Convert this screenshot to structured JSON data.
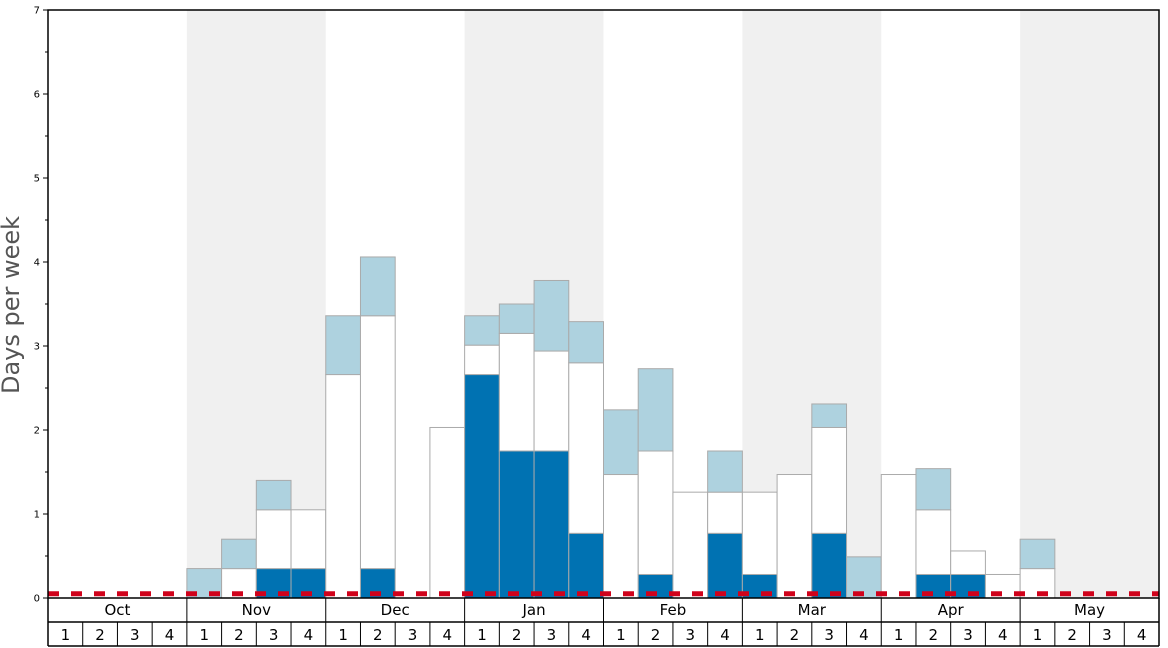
{
  "chart_data": {
    "type": "bar",
    "ylabel": "Days per week",
    "ylim": [
      0,
      7
    ],
    "yticks": [
      "0",
      "1",
      "2",
      "3",
      "4",
      "5",
      "6",
      "7"
    ],
    "months": [
      "Oct",
      "Nov",
      "Dec",
      "Jan",
      "Feb",
      "Mar",
      "Apr",
      "May"
    ],
    "week_labels": [
      "1",
      "2",
      "3",
      "4"
    ],
    "shaded_months": [
      "Nov",
      "Jan",
      "Mar",
      "May"
    ],
    "threshold": 0.05,
    "colors": {
      "dark": "#0072b2",
      "white": "#ffffff",
      "light": "#aed2df",
      "threshold": "#d0021b",
      "shade": "#f0f0f0",
      "stroke": "#aaaaaa"
    },
    "series_order": [
      "dark",
      "white",
      "light"
    ],
    "weeks": [
      {
        "month": "Oct",
        "week": 1,
        "dark": 0,
        "white": 0,
        "light": 0
      },
      {
        "month": "Oct",
        "week": 2,
        "dark": 0,
        "white": 0,
        "light": 0
      },
      {
        "month": "Oct",
        "week": 3,
        "dark": 0,
        "white": 0,
        "light": 0
      },
      {
        "month": "Oct",
        "week": 4,
        "dark": 0,
        "white": 0,
        "light": 0
      },
      {
        "month": "Nov",
        "week": 1,
        "dark": 0,
        "white": 0,
        "light": 0.35
      },
      {
        "month": "Nov",
        "week": 2,
        "dark": 0,
        "white": 0.35,
        "light": 0.35
      },
      {
        "month": "Nov",
        "week": 3,
        "dark": 0.35,
        "white": 0.7,
        "light": 0.35
      },
      {
        "month": "Nov",
        "week": 4,
        "dark": 0.35,
        "white": 0.7,
        "light": 0
      },
      {
        "month": "Dec",
        "week": 1,
        "dark": 0,
        "white": 2.66,
        "light": 0.7
      },
      {
        "month": "Dec",
        "week": 2,
        "dark": 0.35,
        "white": 3.01,
        "light": 0.7
      },
      {
        "month": "Dec",
        "week": 3,
        "dark": 0,
        "white": 0,
        "light": 0
      },
      {
        "month": "Dec",
        "week": 4,
        "dark": 0,
        "white": 2.03,
        "light": 0
      },
      {
        "month": "Jan",
        "week": 1,
        "dark": 2.66,
        "white": 0.35,
        "light": 0.35
      },
      {
        "month": "Jan",
        "week": 2,
        "dark": 1.75,
        "white": 1.4,
        "light": 0.35
      },
      {
        "month": "Jan",
        "week": 3,
        "dark": 1.75,
        "white": 1.19,
        "light": 0.84
      },
      {
        "month": "Jan",
        "week": 4,
        "dark": 0.77,
        "white": 2.03,
        "light": 0.49
      },
      {
        "month": "Feb",
        "week": 1,
        "dark": 0,
        "white": 1.47,
        "light": 0.77
      },
      {
        "month": "Feb",
        "week": 2,
        "dark": 0.28,
        "white": 1.47,
        "light": 0.98
      },
      {
        "month": "Feb",
        "week": 3,
        "dark": 0,
        "white": 1.26,
        "light": 0
      },
      {
        "month": "Feb",
        "week": 4,
        "dark": 0.77,
        "white": 0.49,
        "light": 0.49
      },
      {
        "month": "Mar",
        "week": 1,
        "dark": 0.28,
        "white": 0.98,
        "light": 0
      },
      {
        "month": "Mar",
        "week": 2,
        "dark": 0,
        "white": 1.47,
        "light": 0
      },
      {
        "month": "Mar",
        "week": 3,
        "dark": 0.77,
        "white": 1.26,
        "light": 0.28
      },
      {
        "month": "Mar",
        "week": 4,
        "dark": 0,
        "white": 0,
        "light": 0.49
      },
      {
        "month": "Apr",
        "week": 1,
        "dark": 0,
        "white": 1.47,
        "light": 0
      },
      {
        "month": "Apr",
        "week": 2,
        "dark": 0.28,
        "white": 0.77,
        "light": 0.49
      },
      {
        "month": "Apr",
        "week": 3,
        "dark": 0.28,
        "white": 0.28,
        "light": 0
      },
      {
        "month": "Apr",
        "week": 4,
        "dark": 0,
        "white": 0.28,
        "light": 0
      },
      {
        "month": "May",
        "week": 1,
        "dark": 0,
        "white": 0.35,
        "light": 0.35
      },
      {
        "month": "May",
        "week": 2,
        "dark": 0,
        "white": 0,
        "light": 0
      },
      {
        "month": "May",
        "week": 3,
        "dark": 0,
        "white": 0,
        "light": 0
      },
      {
        "month": "May",
        "week": 4,
        "dark": 0,
        "white": 0,
        "light": 0
      }
    ]
  }
}
